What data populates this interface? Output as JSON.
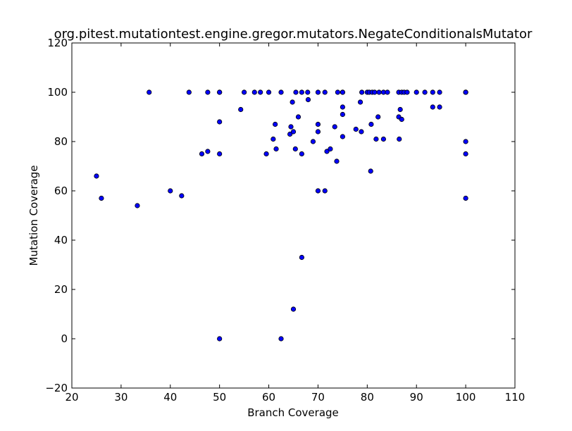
{
  "chart_data": {
    "type": "scatter",
    "title": "org.pitest.mutationtest.engine.gregor.mutators.NegateConditionalsMutator",
    "xlabel": "Branch Coverage",
    "ylabel": "Mutation Coverage",
    "xlim": [
      20,
      110
    ],
    "ylim": [
      -20,
      120
    ],
    "xticks": [
      20,
      30,
      40,
      50,
      60,
      70,
      80,
      90,
      100,
      110
    ],
    "yticks": [
      -20,
      0,
      20,
      40,
      60,
      80,
      100,
      120
    ],
    "xtick_labels": [
      "20",
      "30",
      "40",
      "50",
      "60",
      "70",
      "80",
      "90",
      "100",
      "110"
    ],
    "ytick_labels": [
      "−20",
      "0",
      "20",
      "40",
      "60",
      "80",
      "100",
      "120"
    ],
    "grid": false,
    "marker_color": "#0000ff",
    "marker_edge": "#000000",
    "points": [
      [
        25.0,
        66
      ],
      [
        26.0,
        57
      ],
      [
        33.3,
        54
      ],
      [
        35.7,
        100
      ],
      [
        40.0,
        60
      ],
      [
        42.3,
        58
      ],
      [
        43.8,
        100
      ],
      [
        46.4,
        75
      ],
      [
        47.6,
        76
      ],
      [
        47.6,
        100
      ],
      [
        50.0,
        100
      ],
      [
        50.0,
        100
      ],
      [
        50.0,
        88
      ],
      [
        50.0,
        75
      ],
      [
        50.0,
        0
      ],
      [
        54.3,
        93
      ],
      [
        55.0,
        100
      ],
      [
        57.1,
        100
      ],
      [
        58.3,
        100
      ],
      [
        59.5,
        75
      ],
      [
        60.0,
        100
      ],
      [
        60.9,
        81
      ],
      [
        61.3,
        87
      ],
      [
        61.5,
        77
      ],
      [
        62.5,
        100
      ],
      [
        62.5,
        0
      ],
      [
        64.3,
        83
      ],
      [
        64.5,
        86
      ],
      [
        64.8,
        96
      ],
      [
        65.0,
        84
      ],
      [
        65.0,
        12
      ],
      [
        65.4,
        77
      ],
      [
        65.5,
        100
      ],
      [
        66.0,
        90
      ],
      [
        66.7,
        100
      ],
      [
        66.7,
        75
      ],
      [
        66.7,
        33
      ],
      [
        67.9,
        100
      ],
      [
        68.0,
        97
      ],
      [
        69.0,
        80
      ],
      [
        70.0,
        100
      ],
      [
        70.0,
        87
      ],
      [
        70.0,
        84
      ],
      [
        70.0,
        60
      ],
      [
        71.4,
        100
      ],
      [
        71.4,
        60
      ],
      [
        71.8,
        76
      ],
      [
        72.5,
        77
      ],
      [
        73.4,
        86
      ],
      [
        73.8,
        72
      ],
      [
        74.0,
        100
      ],
      [
        75.0,
        100
      ],
      [
        75.0,
        100
      ],
      [
        75.0,
        94
      ],
      [
        75.0,
        91
      ],
      [
        75.0,
        82
      ],
      [
        77.7,
        85
      ],
      [
        78.6,
        96
      ],
      [
        78.8,
        84
      ],
      [
        78.9,
        100
      ],
      [
        80.0,
        100
      ],
      [
        80.4,
        100
      ],
      [
        80.7,
        68
      ],
      [
        80.8,
        87
      ],
      [
        81.0,
        100
      ],
      [
        81.5,
        100
      ],
      [
        81.8,
        81
      ],
      [
        82.2,
        90
      ],
      [
        82.4,
        100
      ],
      [
        83.3,
        100
      ],
      [
        83.3,
        81
      ],
      [
        84.1,
        100
      ],
      [
        86.4,
        100
      ],
      [
        86.4,
        90
      ],
      [
        86.5,
        81
      ],
      [
        86.7,
        93
      ],
      [
        87.0,
        89
      ],
      [
        87.0,
        100
      ],
      [
        87.5,
        100
      ],
      [
        88.1,
        100
      ],
      [
        90.0,
        100
      ],
      [
        91.7,
        100
      ],
      [
        93.3,
        100
      ],
      [
        93.3,
        94
      ],
      [
        94.7,
        100
      ],
      [
        94.7,
        94
      ],
      [
        100.0,
        100
      ],
      [
        100.0,
        100
      ],
      [
        100.0,
        100
      ],
      [
        100.0,
        80
      ],
      [
        100.0,
        75
      ],
      [
        100.0,
        57
      ]
    ]
  }
}
